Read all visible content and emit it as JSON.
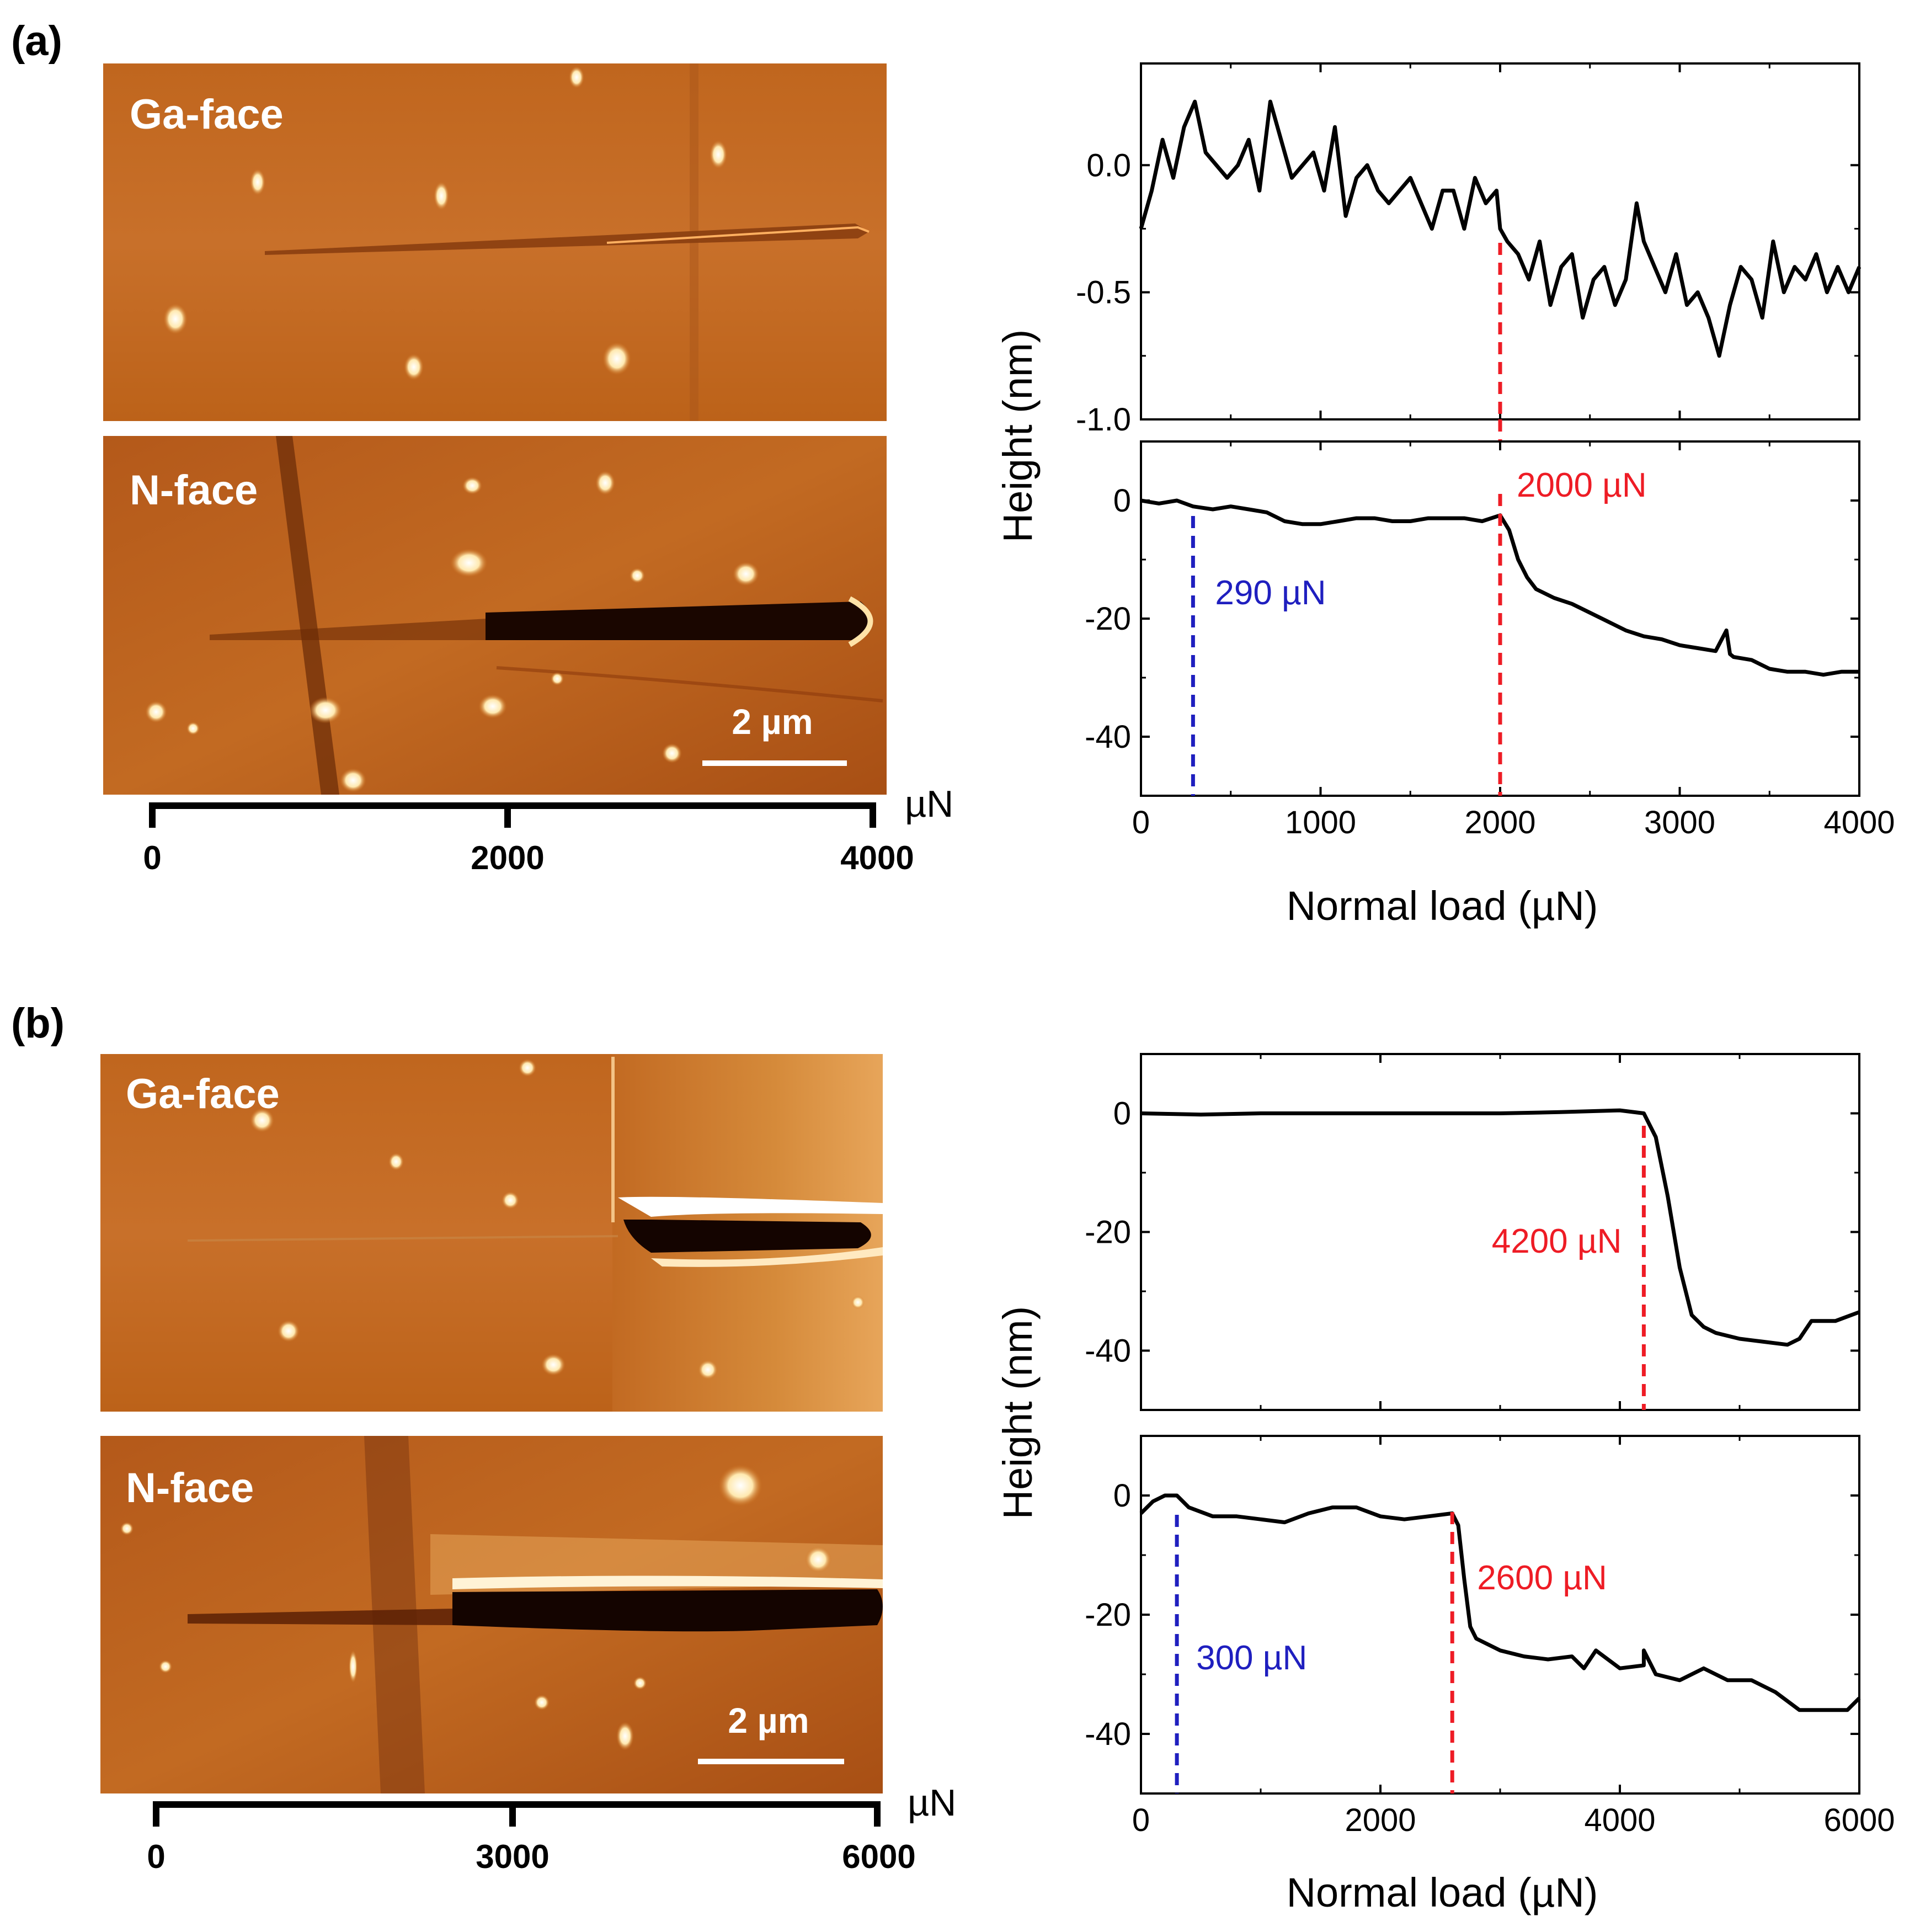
{
  "labels": {
    "a": "(a)",
    "b": "(b)"
  },
  "images": [
    {
      "ga_label": "Ga-face",
      "n_label": "N-face",
      "scale": "2 µm",
      "bar": {
        "unit": "µN",
        "ticks": [
          "0",
          "2000",
          "4000"
        ]
      }
    },
    {
      "ga_label": "Ga-face",
      "n_label": "N-face",
      "scale": "2 µm",
      "bar": {
        "unit": "µN",
        "ticks": [
          "0",
          "3000",
          "6000"
        ]
      }
    }
  ],
  "colors": {
    "line": "#000000",
    "red": "#ee1c25",
    "blue": "#1f1fbf"
  },
  "chart_data": [
    {
      "type": "line",
      "title": "(a) Ga-face",
      "xlabel": "",
      "ylabel": "Height (nm)",
      "xlim": [
        0,
        4000
      ],
      "ylim": [
        -1.0,
        0.4
      ],
      "yticks": [
        0.0,
        -0.5,
        -1.0
      ],
      "ytick_labels": [
        "0.0",
        "-0.5",
        "-1.0"
      ],
      "xticks": [
        0,
        1000,
        2000,
        3000,
        4000
      ],
      "show_xtick_labels": false,
      "series": [
        {
          "name": "Ga-face profile",
          "x": [
            0,
            60,
            120,
            180,
            240,
            300,
            360,
            420,
            480,
            540,
            600,
            660,
            720,
            780,
            840,
            900,
            960,
            1020,
            1080,
            1140,
            1200,
            1260,
            1320,
            1380,
            1440,
            1500,
            1560,
            1620,
            1680,
            1740,
            1800,
            1860,
            1920,
            1980,
            2000,
            2040,
            2100,
            2160,
            2220,
            2280,
            2340,
            2400,
            2460,
            2520,
            2580,
            2640,
            2700,
            2760,
            2800,
            2860,
            2920,
            2980,
            3040,
            3100,
            3160,
            3220,
            3280,
            3340,
            3400,
            3460,
            3520,
            3580,
            3640,
            3700,
            3760,
            3820,
            3880,
            3940,
            4000
          ],
          "y": [
            -0.25,
            -0.1,
            0.1,
            -0.05,
            0.15,
            0.25,
            0.05,
            0.0,
            -0.05,
            0.0,
            0.1,
            -0.1,
            0.25,
            0.1,
            -0.05,
            0.0,
            0.05,
            -0.1,
            0.15,
            -0.2,
            -0.05,
            0.0,
            -0.1,
            -0.15,
            -0.1,
            -0.05,
            -0.15,
            -0.25,
            -0.1,
            -0.1,
            -0.25,
            -0.05,
            -0.15,
            -0.1,
            -0.25,
            -0.3,
            -0.35,
            -0.45,
            -0.3,
            -0.55,
            -0.4,
            -0.35,
            -0.6,
            -0.45,
            -0.4,
            -0.55,
            -0.45,
            -0.15,
            -0.3,
            -0.4,
            -0.5,
            -0.35,
            -0.55,
            -0.5,
            -0.6,
            -0.75,
            -0.55,
            -0.4,
            -0.45,
            -0.6,
            -0.3,
            -0.5,
            -0.4,
            -0.45,
            -0.35,
            -0.5,
            -0.4,
            -0.5,
            -0.4
          ]
        }
      ],
      "markers": [
        {
          "x": 2000,
          "color": "red",
          "label": ""
        }
      ]
    },
    {
      "type": "line",
      "title": "(a) N-face",
      "xlabel": "Normal load (µN)",
      "ylabel": "",
      "xlim": [
        0,
        4000
      ],
      "ylim": [
        -50,
        10
      ],
      "yticks": [
        0,
        -20,
        -40
      ],
      "ytick_labels": [
        "0",
        "-20",
        "-40"
      ],
      "xticks": [
        0,
        1000,
        2000,
        3000,
        4000
      ],
      "xtick_labels": [
        "0",
        "1000",
        "2000",
        "3000",
        "4000"
      ],
      "series": [
        {
          "name": "N-face profile",
          "x": [
            0,
            100,
            200,
            290,
            400,
            500,
            600,
            700,
            800,
            900,
            1000,
            1100,
            1200,
            1300,
            1400,
            1500,
            1600,
            1700,
            1800,
            1900,
            2000,
            2050,
            2100,
            2150,
            2200,
            2300,
            2400,
            2500,
            2600,
            2700,
            2800,
            2900,
            3000,
            3100,
            3200,
            3260,
            3280,
            3300,
            3400,
            3500,
            3600,
            3700,
            3800,
            3900,
            4000
          ],
          "y": [
            0,
            -0.5,
            0,
            -1,
            -1.5,
            -1,
            -1.5,
            -2,
            -3.5,
            -4,
            -4,
            -3.5,
            -3,
            -3,
            -3.5,
            -3.5,
            -3,
            -3,
            -3,
            -3.5,
            -2.5,
            -5,
            -10,
            -13,
            -15,
            -16.5,
            -17.5,
            -19,
            -20.5,
            -22,
            -23,
            -23.5,
            -24.5,
            -25,
            -25.5,
            -22,
            -26,
            -26.5,
            -27,
            -28.5,
            -29,
            -29,
            -29.5,
            -29,
            -29
          ]
        }
      ],
      "markers": [
        {
          "x": 290,
          "color": "blue",
          "label": "290 µN"
        },
        {
          "x": 2000,
          "color": "red",
          "label": "2000 µN"
        }
      ]
    },
    {
      "type": "line",
      "title": "(b) Ga-face",
      "xlabel": "",
      "ylabel": "Height (nm)",
      "xlim": [
        0,
        6000
      ],
      "ylim": [
        -50,
        10
      ],
      "yticks": [
        0,
        -20,
        -40
      ],
      "ytick_labels": [
        "0",
        "-20",
        "-40"
      ],
      "xticks": [
        0,
        2000,
        4000,
        6000
      ],
      "show_xtick_labels": false,
      "series": [
        {
          "name": "Ga-face profile",
          "x": [
            0,
            500,
            1000,
            1500,
            2000,
            2500,
            3000,
            3500,
            4000,
            4200,
            4300,
            4400,
            4500,
            4600,
            4700,
            4800,
            5000,
            5200,
            5400,
            5500,
            5600,
            5700,
            5800,
            6000
          ],
          "y": [
            0,
            -0.2,
            0,
            0,
            0,
            0,
            0,
            0.2,
            0.5,
            0,
            -4,
            -14,
            -26,
            -34,
            -36,
            -37,
            -38,
            -38.5,
            -39,
            -38,
            -35,
            -35,
            -35,
            -33.5
          ]
        }
      ],
      "markers": [
        {
          "x": 4200,
          "color": "red",
          "label": "4200 µN"
        }
      ]
    },
    {
      "type": "line",
      "title": "(b) N-face",
      "xlabel": "Normal load (µN)",
      "ylabel": "",
      "xlim": [
        0,
        6000
      ],
      "ylim": [
        -50,
        10
      ],
      "yticks": [
        0,
        -20,
        -40
      ],
      "ytick_labels": [
        "0",
        "-20",
        "-40"
      ],
      "xticks": [
        0,
        2000,
        4000,
        6000
      ],
      "xtick_labels": [
        "0",
        "2000",
        "4000",
        "6000"
      ],
      "series": [
        {
          "name": "N-face profile",
          "x": [
            0,
            100,
            200,
            300,
            400,
            600,
            800,
            1000,
            1200,
            1400,
            1600,
            1800,
            2000,
            2200,
            2400,
            2600,
            2650,
            2700,
            2750,
            2800,
            3000,
            3200,
            3400,
            3600,
            3700,
            3800,
            4000,
            4200,
            4200,
            4300,
            4500,
            4700,
            4900,
            5000,
            5100,
            5300,
            5500,
            5700,
            5900,
            6000
          ],
          "y": [
            -3,
            -1,
            0,
            0,
            -2,
            -3.5,
            -3.5,
            -4,
            -4.5,
            -3,
            -2,
            -2,
            -3.5,
            -4,
            -3.5,
            -3,
            -5,
            -14,
            -22,
            -24,
            -26,
            -27,
            -27.5,
            -27,
            -29,
            -26,
            -29,
            -28.5,
            -26,
            -30,
            -31,
            -29,
            -31,
            -31,
            -31,
            -33,
            -36,
            -36,
            -36,
            -34
          ]
        }
      ],
      "markers": [
        {
          "x": 300,
          "color": "blue",
          "label": "300 µN"
        },
        {
          "x": 2600,
          "color": "red",
          "label": "2600 µN"
        }
      ]
    }
  ]
}
